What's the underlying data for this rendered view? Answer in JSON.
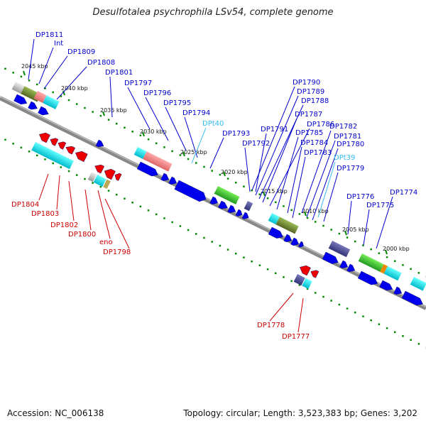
{
  "title": "Desulfotalea psychrophila LSv54, complete genome",
  "footer": {
    "accession": "Accession: NC_006138",
    "topology": "Topology: circular; Length: 3,523,383 bp; Genes: 3,202"
  },
  "ticks": [
    "2045 kbp",
    "2040 kbp",
    "2035 kbp",
    "2030 kbp",
    "2025 kbp",
    "2020 kbp",
    "2015 kbp",
    "2010 kbp",
    "2005 kbp",
    "2000 kbp"
  ],
  "gene_labels_top": [
    "DP1811",
    "Int",
    "DP1809",
    "DP1808",
    "DP1801",
    "DP1797",
    "DP1796",
    "DP1795",
    "DP1794",
    "DPt40",
    "DP1793",
    "DP1792",
    "DP1791",
    "DP1790",
    "DP1789",
    "DP1788",
    "DP1787",
    "DP1786",
    "DP1785",
    "DP1784",
    "DP1783",
    "DP1782",
    "DP1781",
    "DP1780",
    "DPt39",
    "DP1779",
    "DP1776",
    "DP1775",
    "DP1774"
  ],
  "gene_labels_bottom": [
    "DP1804",
    "DP1803",
    "DP1802",
    "DP1800",
    "eno",
    "DP1798",
    "DP1778",
    "DP1777"
  ],
  "colors": {
    "forward_gene": "#0000ee",
    "reverse_gene": "#ee0000",
    "trna_label": "#33bbee",
    "backbone": "#888888",
    "dots": "#008800"
  }
}
